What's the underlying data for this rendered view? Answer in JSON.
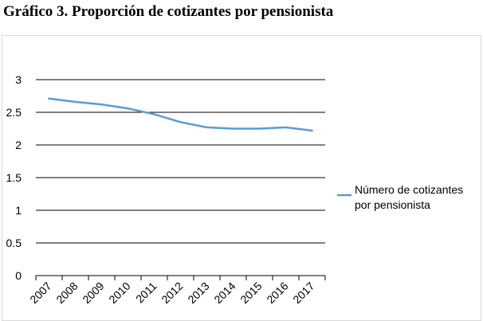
{
  "title": "Gráfico 3. Proporción de cotizantes por pensionista",
  "chart_data": {
    "type": "line",
    "categories": [
      "2007",
      "2008",
      "2009",
      "2010",
      "2011",
      "2012",
      "2013",
      "2014",
      "2015",
      "2016",
      "2017"
    ],
    "series": [
      {
        "name": "Número de cotizantes por pensionista",
        "legend_lines": [
          "Número de cotizantes",
          "por pensionista"
        ],
        "values": [
          2.71,
          2.66,
          2.62,
          2.56,
          2.47,
          2.35,
          2.27,
          2.25,
          2.25,
          2.27,
          2.22
        ],
        "color": "#5b9bd5"
      }
    ],
    "yticks": [
      "0",
      "0.5",
      "1",
      "1.5",
      "2",
      "2.5",
      "3"
    ],
    "ylim": [
      0,
      3
    ],
    "grid": true,
    "legend_position": "right"
  }
}
